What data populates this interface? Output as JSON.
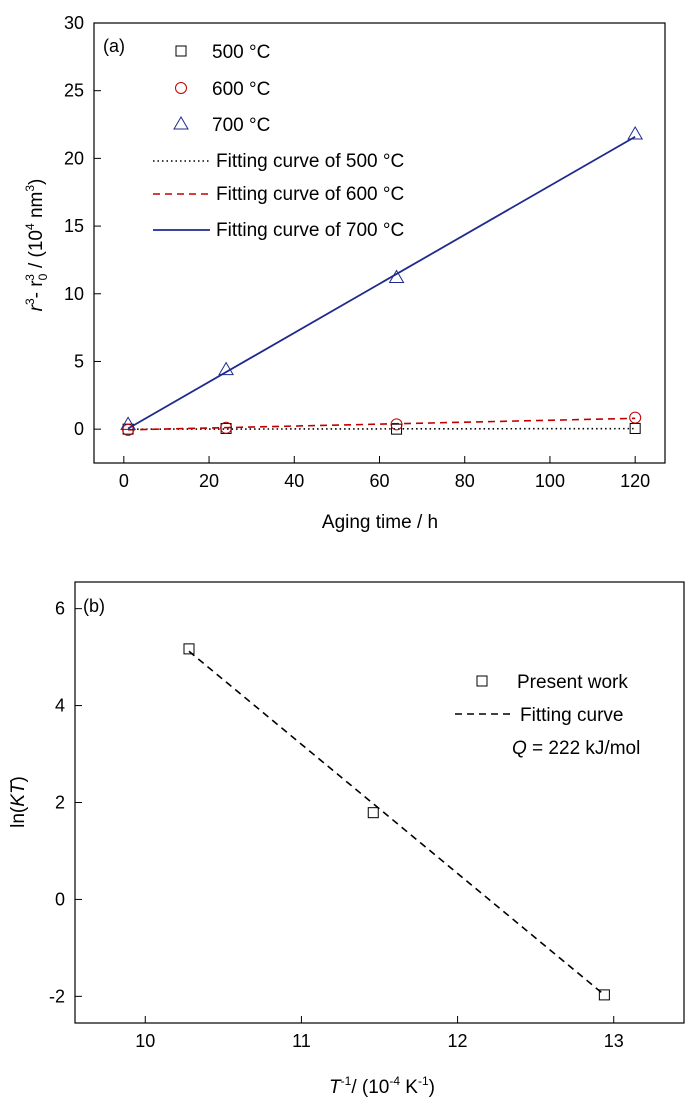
{
  "chart_data": [
    {
      "type": "scatter",
      "panel_label": "(a)",
      "xlabel": "Aging time / h",
      "ylabel": {
        "r1": "r",
        "s1": "3",
        "mid": "- r",
        "sub": "0",
        "s2": "3",
        "pre": "/  (10",
        "e": "4",
        "unit": " nm",
        "e2": "3",
        "post": ")"
      },
      "xlim": [
        -7,
        127
      ],
      "ylim": [
        -2.5,
        30
      ],
      "xticks": [
        0,
        20,
        40,
        60,
        80,
        100,
        120
      ],
      "yticks": [
        0,
        5,
        10,
        15,
        20,
        25,
        30
      ],
      "xticklabels": [
        "0",
        "20",
        "40",
        "60",
        "80",
        "100",
        "120"
      ],
      "yticklabels": [
        "0",
        "5",
        "10",
        "15",
        "20",
        "25",
        "30"
      ],
      "grid": false,
      "legend_position": "top-left",
      "series": [
        {
          "name": "500 °C",
          "marker": "square",
          "color": "#000000",
          "x": [
            1,
            24,
            64,
            120
          ],
          "y": [
            0.0,
            0.05,
            0.0,
            0.05
          ]
        },
        {
          "name": "600 °C",
          "marker": "circle",
          "color": "#c00000",
          "x": [
            1,
            24,
            64,
            120
          ],
          "y": [
            -0.05,
            0.1,
            0.35,
            0.85
          ]
        },
        {
          "name": "700 °C",
          "marker": "triangle",
          "color": "#1f2a8f",
          "x": [
            1,
            24,
            64,
            120
          ],
          "y": [
            0.35,
            4.4,
            11.2,
            21.8
          ]
        }
      ],
      "fits": [
        {
          "name": "Fitting curve of 500 °C",
          "style": "dotted",
          "color": "#000000",
          "x": [
            1,
            120
          ],
          "y": [
            0.0,
            0.04
          ]
        },
        {
          "name": "Fitting curve of 600 °C",
          "style": "dashed",
          "color": "#c00000",
          "x": [
            1,
            120
          ],
          "y": [
            -0.05,
            0.8
          ]
        },
        {
          "name": "Fitting curve of 700 °C",
          "style": "solid",
          "color": "#1f2a8f",
          "x": [
            1,
            120
          ],
          "y": [
            0.05,
            21.6
          ]
        }
      ]
    },
    {
      "type": "scatter",
      "panel_label": "(b)",
      "xlabel": {
        "t": "T",
        "s1": "-1",
        "pre": "/ (10",
        "e": "-4",
        "unit": " K",
        "e2": "-1",
        "post": ")"
      },
      "ylabel": {
        "pre": "ln(",
        "it": "KT",
        "post": ")"
      },
      "xlim": [
        9.55,
        13.45
      ],
      "ylim": [
        -2.55,
        6.55
      ],
      "xticks": [
        10,
        11,
        12,
        13
      ],
      "yticks": [
        -2,
        0,
        2,
        4,
        6
      ],
      "xticklabels": [
        "10",
        "11",
        "12",
        "13"
      ],
      "yticklabels": [
        "-2",
        "0",
        "2",
        "4",
        "6"
      ],
      "grid": false,
      "legend_position": "top-right",
      "series": [
        {
          "name": "Present work",
          "marker": "square",
          "color": "#000000",
          "x": [
            10.28,
            11.46,
            12.94
          ],
          "y": [
            5.17,
            1.79,
            -1.97
          ]
        }
      ],
      "fits": [
        {
          "name": "Fitting curve",
          "style": "dashed",
          "color": "#000000",
          "x": [
            10.28,
            12.94
          ],
          "y": [
            5.12,
            -1.97
          ]
        }
      ],
      "annotation": {
        "q": "Q",
        "text": " = 222 kJ/mol"
      }
    }
  ]
}
